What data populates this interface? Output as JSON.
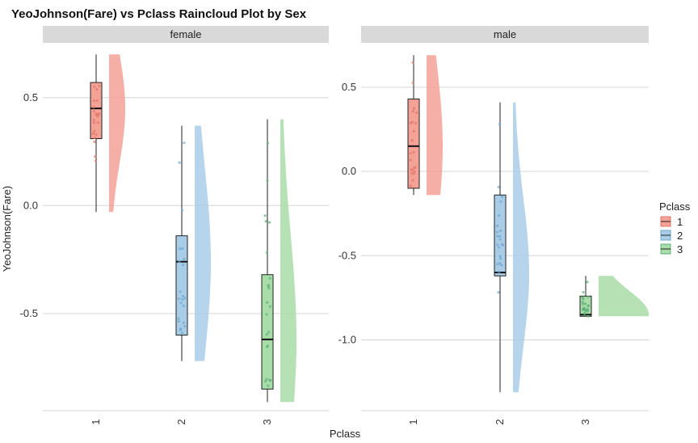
{
  "chart_data": {
    "type": "raincloud",
    "title": "YeoJohnson(Fare) vs Pclass Raincloud Plot by Sex",
    "xlabel": "Pclass",
    "ylabel": "YeoJohnson(Fare)",
    "legend": {
      "title": "Pclass",
      "position": "right",
      "entries": [
        {
          "label": "1",
          "color": "#F4A196"
        },
        {
          "label": "2",
          "color": "#A9CDE7"
        },
        {
          "label": "3",
          "color": "#A8DCA8"
        }
      ]
    },
    "categories": [
      "1",
      "2",
      "3"
    ],
    "grid": true,
    "panels": [
      {
        "label": "female",
        "ylim": [
          -0.95,
          0.72
        ],
        "yticks": [
          0.5,
          0.0,
          -0.5
        ],
        "ytick_labels": [
          "0.5",
          "0.0",
          "-0.5"
        ],
        "boxes": [
          {
            "class": "1",
            "q1": 0.31,
            "median": 0.45,
            "q3": 0.57,
            "whisker_low": -0.03,
            "whisker_high": 0.7
          },
          {
            "class": "2",
            "q1": -0.6,
            "median": -0.26,
            "q3": -0.14,
            "whisker_low": -0.72,
            "whisker_high": 0.37
          },
          {
            "class": "3",
            "q1": -0.85,
            "median": -0.62,
            "q3": -0.32,
            "whisker_low": -0.91,
            "whisker_high": 0.4
          }
        ]
      },
      {
        "label": "male",
        "ylim": [
          -1.42,
          0.72
        ],
        "yticks": [
          0.5,
          0.0,
          -0.5,
          -1.0
        ],
        "ytick_labels": [
          "0.5",
          "0.0",
          "-0.5",
          "-1.0"
        ],
        "boxes": [
          {
            "class": "1",
            "q1": -0.1,
            "median": 0.15,
            "q3": 0.43,
            "whisker_low": -0.14,
            "whisker_high": 0.69
          },
          {
            "class": "2",
            "q1": -0.62,
            "median": -0.6,
            "q3": -0.14,
            "whisker_low": -1.31,
            "whisker_high": 0.41
          },
          {
            "class": "3",
            "q1": -0.86,
            "median": -0.85,
            "q3": -0.74,
            "whisker_low": -0.86,
            "whisker_high": -0.62
          }
        ]
      }
    ]
  }
}
